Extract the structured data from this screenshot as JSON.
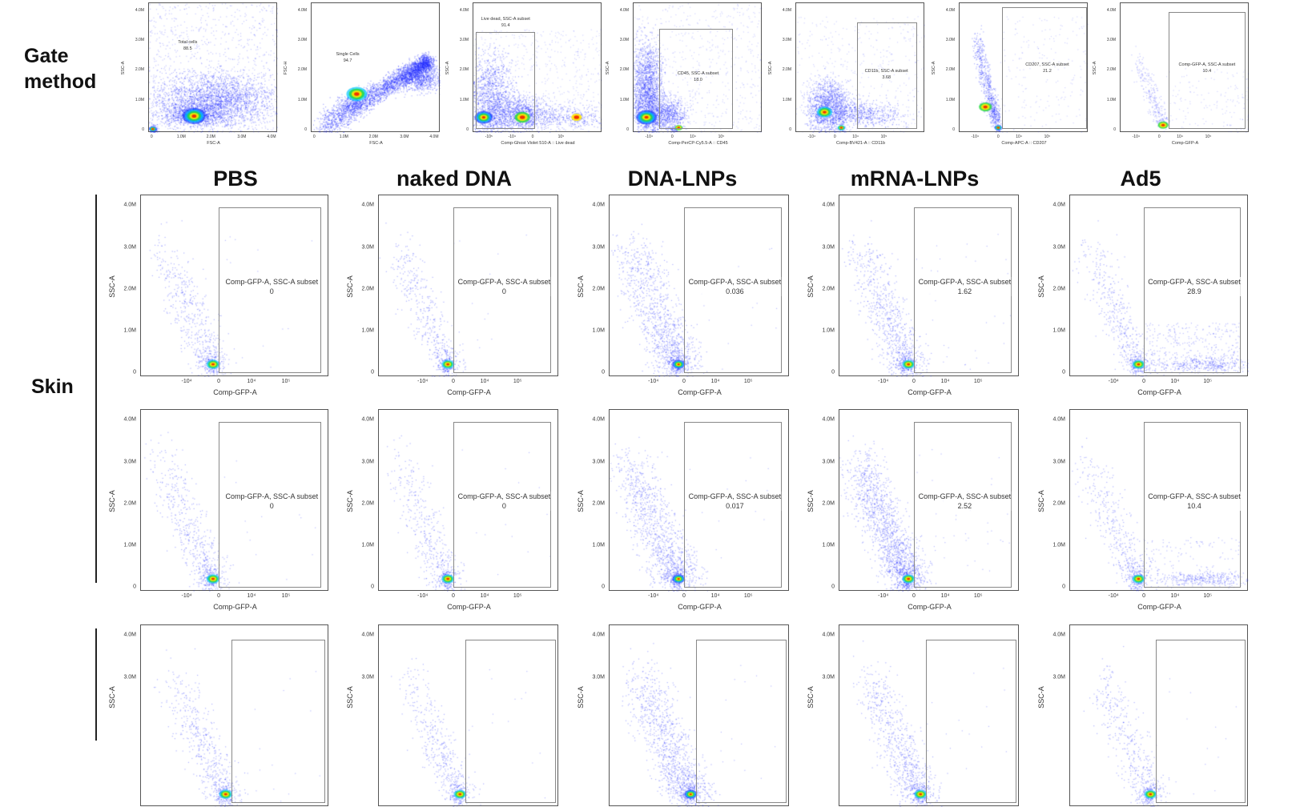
{
  "row_labels": {
    "gate_line1": "Gate",
    "gate_line2": "method",
    "skin": "Skin"
  },
  "columns": [
    "PBS",
    "naked DNA",
    "DNA-LNPs",
    "mRNA-LNPs",
    "Ad5"
  ],
  "chart_data": {
    "type": "scatter",
    "gate_method": [
      {
        "x_label": "FSC-A",
        "y_label": "SSC-A",
        "gate_name": "Total cells",
        "gate_value": "88.5",
        "x_ticks": [
          "0",
          "1.0M",
          "2.0M",
          "3.0M",
          "4.0M"
        ],
        "y_ticks": [
          "4.0M",
          "3.0M",
          "2.0M",
          "1.0M",
          "0"
        ]
      },
      {
        "x_label": "FSC-A",
        "y_label": "FSC-H",
        "gate_name": "Single Cells",
        "gate_value": "94.7",
        "x_ticks": [
          "0",
          "1.0M",
          "2.0M",
          "3.0M",
          "4.0M"
        ],
        "y_ticks": [
          "4.0M",
          "3.0M",
          "2.0M",
          "1.0M",
          "0"
        ]
      },
      {
        "x_label": "Comp-Ghost Violet 510-A :: Live dead",
        "y_label": "SSC-A",
        "gate_name": "Live dead, SSC-A subset",
        "gate_value": "91.4",
        "x_ticks": [
          "-10⁵",
          "-10⁴",
          "0",
          "10⁵"
        ],
        "y_ticks": [
          "4.0M",
          "3.0M",
          "2.0M",
          "1.0M",
          "0"
        ]
      },
      {
        "x_label": "Comp-PerCP-Cy5.5-A :: CD45",
        "y_label": "SSC-A",
        "gate_name": "CD45, SSC-A subset",
        "gate_value": "18.0",
        "x_ticks": [
          "-10⁴",
          "0",
          "10⁴",
          "10⁵"
        ],
        "y_ticks": [
          "4.0M",
          "3.0M",
          "2.0M",
          "1.0M",
          "0"
        ]
      },
      {
        "x_label": "Comp-BV421-A :: CD11b",
        "y_label": "SSC-A",
        "gate_name": "CD11b, SSC-A subset",
        "gate_value": "3.68",
        "x_ticks": [
          "-10⁴",
          "0",
          "10⁴",
          "10⁵"
        ],
        "y_ticks": [
          "4.0M",
          "3.0M",
          "2.0M",
          "1.0M",
          "0"
        ]
      },
      {
        "x_label": "Comp-APC-A :: CD207",
        "y_label": "SSC-A",
        "gate_name": "CD207, SSC-A subset",
        "gate_value": "21.2",
        "x_ticks": [
          "-10⁴",
          "0",
          "10⁴",
          "10⁵"
        ],
        "y_ticks": [
          "4.0M",
          "3.0M",
          "2.0M",
          "1.0M",
          "0"
        ]
      },
      {
        "x_label": "Comp-GFP-A",
        "y_label": "SSC-A",
        "gate_name": "Comp-GFP-A, SSC-A subset",
        "gate_value": "10.4",
        "x_ticks": [
          "-10⁴",
          "0",
          "10⁴",
          "10⁵"
        ],
        "y_ticks": [
          "4.0M",
          "3.0M",
          "2.0M",
          "1.0M",
          "0"
        ]
      }
    ],
    "grid_axes": {
      "x_label": "Comp-GFP-A",
      "y_label": "SSC-A",
      "x_ticks": [
        "-10⁴",
        "0",
        "10⁴",
        "10⁵"
      ],
      "y_ticks": [
        "4.0M",
        "3.0M",
        "2.0M",
        "1.0M",
        "0"
      ],
      "gate_name": "Comp-GFP-A, SSC-A subset"
    },
    "grid_rows": [
      {
        "group": "Skin",
        "values": [
          "0",
          "0",
          "0.036",
          "1.62",
          "28.9"
        ]
      },
      {
        "group": "Skin",
        "values": [
          "0",
          "0",
          "0.017",
          "2.52",
          "10.4"
        ]
      },
      {
        "group": "",
        "values": [
          "",
          "",
          "",
          "",
          ""
        ]
      }
    ]
  }
}
